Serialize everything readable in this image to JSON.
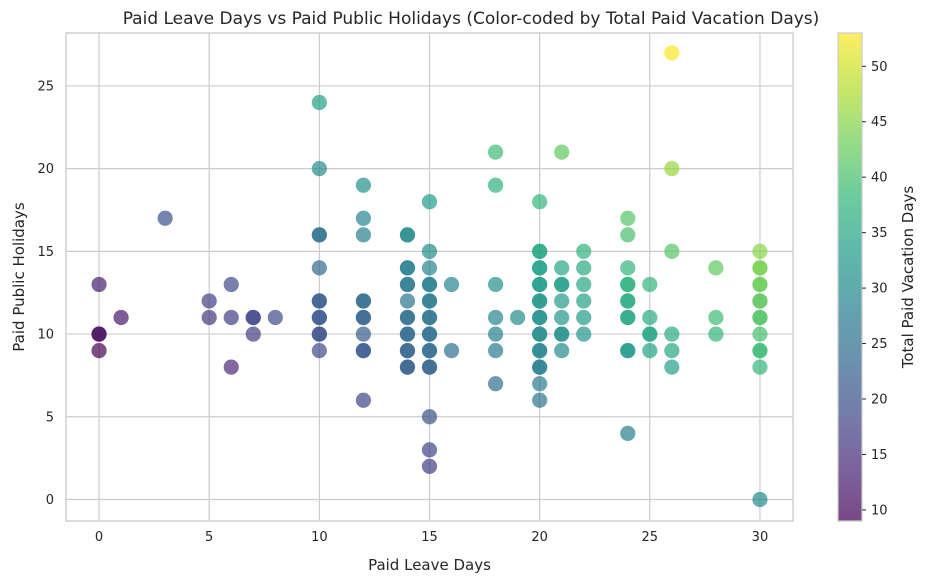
{
  "chart_data": {
    "type": "scatter",
    "title": "Paid Leave Days vs Paid Public Holidays (Color-coded by Total Paid Vacation Days)",
    "xlabel": "Paid Leave Days",
    "ylabel": "Paid Public Holidays",
    "xlim": [
      -1.5,
      31.5
    ],
    "ylim": [
      -1.3,
      28.2
    ],
    "xticks": [
      0,
      5,
      10,
      15,
      20,
      25,
      30
    ],
    "yticks": [
      0,
      5,
      10,
      15,
      20,
      25
    ],
    "grid": true,
    "colorbar": {
      "label": "Total Paid Vacation Days",
      "range": [
        9,
        53
      ],
      "ticks": [
        10,
        15,
        20,
        25,
        30,
        35,
        40,
        45,
        50
      ],
      "colormap": "viridis"
    },
    "points": [
      {
        "x": 0,
        "y": 13
      },
      {
        "x": 0,
        "y": 10
      },
      {
        "x": 0,
        "y": 10
      },
      {
        "x": 0,
        "y": 9
      },
      {
        "x": 1,
        "y": 11
      },
      {
        "x": 3,
        "y": 17
      },
      {
        "x": 5,
        "y": 12
      },
      {
        "x": 5,
        "y": 11
      },
      {
        "x": 6,
        "y": 13
      },
      {
        "x": 6,
        "y": 11
      },
      {
        "x": 6,
        "y": 8
      },
      {
        "x": 7,
        "y": 11
      },
      {
        "x": 7,
        "y": 11
      },
      {
        "x": 7,
        "y": 10
      },
      {
        "x": 8,
        "y": 11
      },
      {
        "x": 10,
        "y": 24
      },
      {
        "x": 10,
        "y": 20
      },
      {
        "x": 10,
        "y": 16
      },
      {
        "x": 10,
        "y": 16
      },
      {
        "x": 10,
        "y": 14
      },
      {
        "x": 10,
        "y": 12
      },
      {
        "x": 10,
        "y": 12
      },
      {
        "x": 10,
        "y": 11
      },
      {
        "x": 10,
        "y": 11
      },
      {
        "x": 10,
        "y": 10
      },
      {
        "x": 10,
        "y": 10
      },
      {
        "x": 10,
        "y": 9
      },
      {
        "x": 12,
        "y": 19
      },
      {
        "x": 12,
        "y": 17
      },
      {
        "x": 12,
        "y": 16
      },
      {
        "x": 12,
        "y": 12
      },
      {
        "x": 12,
        "y": 12
      },
      {
        "x": 12,
        "y": 11
      },
      {
        "x": 12,
        "y": 11
      },
      {
        "x": 12,
        "y": 10
      },
      {
        "x": 12,
        "y": 9
      },
      {
        "x": 12,
        "y": 9
      },
      {
        "x": 12,
        "y": 6
      },
      {
        "x": 14,
        "y": 16
      },
      {
        "x": 14,
        "y": 16
      },
      {
        "x": 14,
        "y": 14
      },
      {
        "x": 14,
        "y": 14
      },
      {
        "x": 14,
        "y": 13
      },
      {
        "x": 14,
        "y": 13
      },
      {
        "x": 14,
        "y": 12
      },
      {
        "x": 14,
        "y": 11
      },
      {
        "x": 14,
        "y": 11
      },
      {
        "x": 14,
        "y": 10
      },
      {
        "x": 14,
        "y": 10
      },
      {
        "x": 14,
        "y": 9
      },
      {
        "x": 14,
        "y": 9
      },
      {
        "x": 14,
        "y": 8
      },
      {
        "x": 14,
        "y": 8
      },
      {
        "x": 15,
        "y": 18
      },
      {
        "x": 15,
        "y": 15
      },
      {
        "x": 15,
        "y": 14
      },
      {
        "x": 15,
        "y": 13
      },
      {
        "x": 15,
        "y": 13
      },
      {
        "x": 15,
        "y": 12
      },
      {
        "x": 15,
        "y": 12
      },
      {
        "x": 15,
        "y": 11
      },
      {
        "x": 15,
        "y": 11
      },
      {
        "x": 15,
        "y": 10
      },
      {
        "x": 15,
        "y": 10
      },
      {
        "x": 15,
        "y": 9
      },
      {
        "x": 15,
        "y": 9
      },
      {
        "x": 15,
        "y": 8
      },
      {
        "x": 15,
        "y": 8
      },
      {
        "x": 15,
        "y": 5
      },
      {
        "x": 15,
        "y": 3
      },
      {
        "x": 15,
        "y": 2
      },
      {
        "x": 16,
        "y": 13
      },
      {
        "x": 16,
        "y": 9
      },
      {
        "x": 18,
        "y": 21
      },
      {
        "x": 18,
        "y": 19
      },
      {
        "x": 18,
        "y": 13
      },
      {
        "x": 18,
        "y": 11
      },
      {
        "x": 18,
        "y": 10
      },
      {
        "x": 18,
        "y": 9
      },
      {
        "x": 18,
        "y": 7
      },
      {
        "x": 19,
        "y": 11
      },
      {
        "x": 20,
        "y": 18
      },
      {
        "x": 20,
        "y": 15
      },
      {
        "x": 20,
        "y": 15
      },
      {
        "x": 20,
        "y": 14
      },
      {
        "x": 20,
        "y": 14
      },
      {
        "x": 20,
        "y": 13
      },
      {
        "x": 20,
        "y": 13
      },
      {
        "x": 20,
        "y": 12
      },
      {
        "x": 20,
        "y": 12
      },
      {
        "x": 20,
        "y": 11
      },
      {
        "x": 20,
        "y": 11
      },
      {
        "x": 20,
        "y": 10
      },
      {
        "x": 20,
        "y": 10
      },
      {
        "x": 20,
        "y": 9
      },
      {
        "x": 20,
        "y": 9
      },
      {
        "x": 20,
        "y": 8
      },
      {
        "x": 20,
        "y": 8
      },
      {
        "x": 20,
        "y": 7
      },
      {
        "x": 20,
        "y": 6
      },
      {
        "x": 21,
        "y": 21
      },
      {
        "x": 21,
        "y": 14
      },
      {
        "x": 21,
        "y": 13
      },
      {
        "x": 21,
        "y": 13
      },
      {
        "x": 21,
        "y": 12
      },
      {
        "x": 21,
        "y": 11
      },
      {
        "x": 21,
        "y": 10
      },
      {
        "x": 21,
        "y": 10
      },
      {
        "x": 21,
        "y": 9
      },
      {
        "x": 22,
        "y": 15
      },
      {
        "x": 22,
        "y": 14
      },
      {
        "x": 22,
        "y": 13
      },
      {
        "x": 22,
        "y": 12
      },
      {
        "x": 22,
        "y": 11
      },
      {
        "x": 22,
        "y": 10
      },
      {
        "x": 24,
        "y": 17
      },
      {
        "x": 24,
        "y": 16
      },
      {
        "x": 24,
        "y": 14
      },
      {
        "x": 24,
        "y": 13
      },
      {
        "x": 24,
        "y": 13
      },
      {
        "x": 24,
        "y": 12
      },
      {
        "x": 24,
        "y": 12
      },
      {
        "x": 24,
        "y": 11
      },
      {
        "x": 24,
        "y": 11
      },
      {
        "x": 24,
        "y": 9
      },
      {
        "x": 24,
        "y": 9
      },
      {
        "x": 24,
        "y": 4
      },
      {
        "x": 25,
        "y": 13
      },
      {
        "x": 25,
        "y": 11
      },
      {
        "x": 25,
        "y": 10
      },
      {
        "x": 25,
        "y": 10
      },
      {
        "x": 25,
        "y": 9
      },
      {
        "x": 26,
        "y": 27
      },
      {
        "x": 26,
        "y": 20
      },
      {
        "x": 26,
        "y": 15
      },
      {
        "x": 26,
        "y": 10
      },
      {
        "x": 26,
        "y": 9
      },
      {
        "x": 26,
        "y": 8
      },
      {
        "x": 28,
        "y": 14
      },
      {
        "x": 28,
        "y": 11
      },
      {
        "x": 28,
        "y": 10
      },
      {
        "x": 30,
        "y": 15
      },
      {
        "x": 30,
        "y": 14
      },
      {
        "x": 30,
        "y": 14
      },
      {
        "x": 30,
        "y": 13
      },
      {
        "x": 30,
        "y": 13
      },
      {
        "x": 30,
        "y": 12
      },
      {
        "x": 30,
        "y": 12
      },
      {
        "x": 30,
        "y": 11
      },
      {
        "x": 30,
        "y": 11
      },
      {
        "x": 30,
        "y": 10
      },
      {
        "x": 30,
        "y": 9
      },
      {
        "x": 30,
        "y": 9
      },
      {
        "x": 30,
        "y": 8
      },
      {
        "x": 30,
        "y": 0,
        "c": 30
      }
    ]
  }
}
